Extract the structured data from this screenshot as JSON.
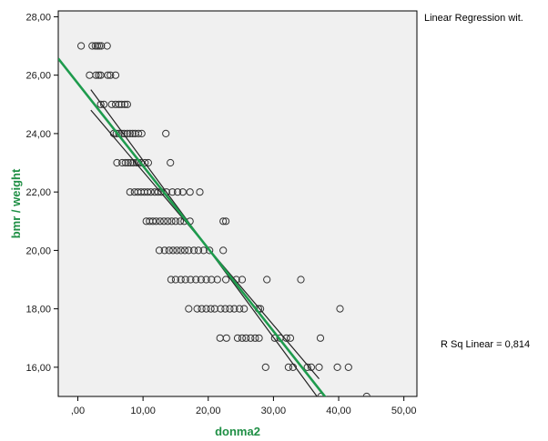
{
  "chart_data": {
    "type": "scatter",
    "title": "",
    "xlabel": "donma2",
    "ylabel": "bmr / weight",
    "xlim": [
      -3,
      52
    ],
    "ylim": [
      15,
      28.2
    ],
    "x_ticks": [
      ",00",
      "10,00",
      "20,00",
      "30,00",
      "40,00",
      "50,00"
    ],
    "x_tick_values": [
      0,
      10,
      20,
      30,
      40,
      50
    ],
    "y_ticks": [
      "16,00",
      "18,00",
      "20,00",
      "22,00",
      "24,00",
      "26,00",
      "28,00"
    ],
    "y_tick_values": [
      16,
      18,
      20,
      22,
      24,
      26,
      28
    ],
    "grid": false,
    "annotations": {
      "legend_text": "Linear Regression wit.",
      "r_squared": "R Sq Linear = 0,814"
    },
    "colors": {
      "plot_background": "#f0f0f0",
      "points": "#333333",
      "fit_line": "#1e9b4d",
      "ci_lines": "#222222",
      "axis_title": "#1f8f45"
    },
    "regression": {
      "intercept": 25.72,
      "slope": -0.2829,
      "ci_offset": 0.35
    },
    "series": [
      {
        "values": [
          [
            0.5,
            27
          ],
          [
            2.2,
            27
          ],
          [
            2.7,
            27
          ],
          [
            3.0,
            27
          ],
          [
            3.3,
            27
          ],
          [
            3.6,
            27
          ],
          [
            4.5,
            27
          ],
          [
            1.8,
            26
          ],
          [
            2.8,
            26
          ],
          [
            3.2,
            26
          ],
          [
            3.5,
            26
          ],
          [
            4.6,
            26
          ],
          [
            5.0,
            26
          ],
          [
            5.8,
            26
          ],
          [
            3.5,
            25
          ],
          [
            4.0,
            25
          ],
          [
            5.2,
            25
          ],
          [
            5.8,
            25
          ],
          [
            6.3,
            25
          ],
          [
            6.7,
            25
          ],
          [
            7.2,
            25
          ],
          [
            7.6,
            25
          ],
          [
            5.5,
            24
          ],
          [
            5.9,
            24
          ],
          [
            6.3,
            24
          ],
          [
            6.7,
            24
          ],
          [
            7.1,
            24
          ],
          [
            7.6,
            24
          ],
          [
            8.0,
            24
          ],
          [
            8.4,
            24
          ],
          [
            8.8,
            24
          ],
          [
            9.3,
            24
          ],
          [
            9.8,
            24
          ],
          [
            13.5,
            24
          ],
          [
            6.0,
            23
          ],
          [
            6.8,
            23
          ],
          [
            7.3,
            23
          ],
          [
            7.7,
            23
          ],
          [
            8.1,
            23
          ],
          [
            8.5,
            23
          ],
          [
            9.0,
            23
          ],
          [
            9.3,
            23
          ],
          [
            9.7,
            23
          ],
          [
            10.3,
            23
          ],
          [
            10.8,
            23
          ],
          [
            14.2,
            23
          ],
          [
            8.0,
            22
          ],
          [
            8.7,
            22
          ],
          [
            9.2,
            22
          ],
          [
            9.7,
            22
          ],
          [
            10.2,
            22
          ],
          [
            10.7,
            22
          ],
          [
            11.2,
            22
          ],
          [
            11.8,
            22
          ],
          [
            12.3,
            22
          ],
          [
            12.8,
            22
          ],
          [
            13.6,
            22
          ],
          [
            14.5,
            22
          ],
          [
            15.3,
            22
          ],
          [
            16.1,
            22
          ],
          [
            17.2,
            22
          ],
          [
            18.7,
            22
          ],
          [
            10.5,
            21
          ],
          [
            11.0,
            21
          ],
          [
            11.5,
            21
          ],
          [
            12.0,
            21
          ],
          [
            12.6,
            21
          ],
          [
            13.2,
            21
          ],
          [
            13.8,
            21
          ],
          [
            14.4,
            21
          ],
          [
            15.0,
            21
          ],
          [
            15.7,
            21
          ],
          [
            16.3,
            21
          ],
          [
            17.2,
            21
          ],
          [
            22.3,
            21
          ],
          [
            22.7,
            21
          ],
          [
            12.5,
            20
          ],
          [
            13.3,
            20
          ],
          [
            14.0,
            20
          ],
          [
            14.6,
            20
          ],
          [
            15.2,
            20
          ],
          [
            15.8,
            20
          ],
          [
            16.4,
            20
          ],
          [
            17.0,
            20
          ],
          [
            17.8,
            20
          ],
          [
            18.5,
            20
          ],
          [
            19.3,
            20
          ],
          [
            20.2,
            20
          ],
          [
            22.3,
            20
          ],
          [
            14.3,
            19
          ],
          [
            15.0,
            19
          ],
          [
            15.8,
            19
          ],
          [
            16.5,
            19
          ],
          [
            17.3,
            19
          ],
          [
            18.1,
            19
          ],
          [
            18.9,
            19
          ],
          [
            19.7,
            19
          ],
          [
            20.5,
            19
          ],
          [
            21.4,
            19
          ],
          [
            22.7,
            19
          ],
          [
            24.3,
            19
          ],
          [
            25.2,
            19
          ],
          [
            29.0,
            19
          ],
          [
            34.2,
            19
          ],
          [
            17.0,
            18
          ],
          [
            18.3,
            18
          ],
          [
            19.0,
            18
          ],
          [
            19.7,
            18
          ],
          [
            20.4,
            18
          ],
          [
            21.0,
            18
          ],
          [
            21.9,
            18
          ],
          [
            22.6,
            18
          ],
          [
            23.3,
            18
          ],
          [
            24.0,
            18
          ],
          [
            24.8,
            18
          ],
          [
            25.5,
            18
          ],
          [
            27.7,
            18
          ],
          [
            28.0,
            18
          ],
          [
            40.2,
            18
          ],
          [
            21.8,
            17
          ],
          [
            22.8,
            17
          ],
          [
            24.5,
            17
          ],
          [
            25.2,
            17
          ],
          [
            25.8,
            17
          ],
          [
            26.5,
            17
          ],
          [
            27.2,
            17
          ],
          [
            27.8,
            17
          ],
          [
            30.2,
            17
          ],
          [
            31.0,
            17
          ],
          [
            32.0,
            17
          ],
          [
            32.6,
            17
          ],
          [
            37.2,
            17
          ],
          [
            28.8,
            16
          ],
          [
            32.3,
            16
          ],
          [
            33.0,
            16
          ],
          [
            35.2,
            16
          ],
          [
            35.8,
            16
          ],
          [
            37.0,
            16
          ],
          [
            39.8,
            16
          ],
          [
            41.5,
            16
          ],
          [
            37.3,
            15
          ],
          [
            44.3,
            15
          ]
        ]
      }
    ]
  }
}
